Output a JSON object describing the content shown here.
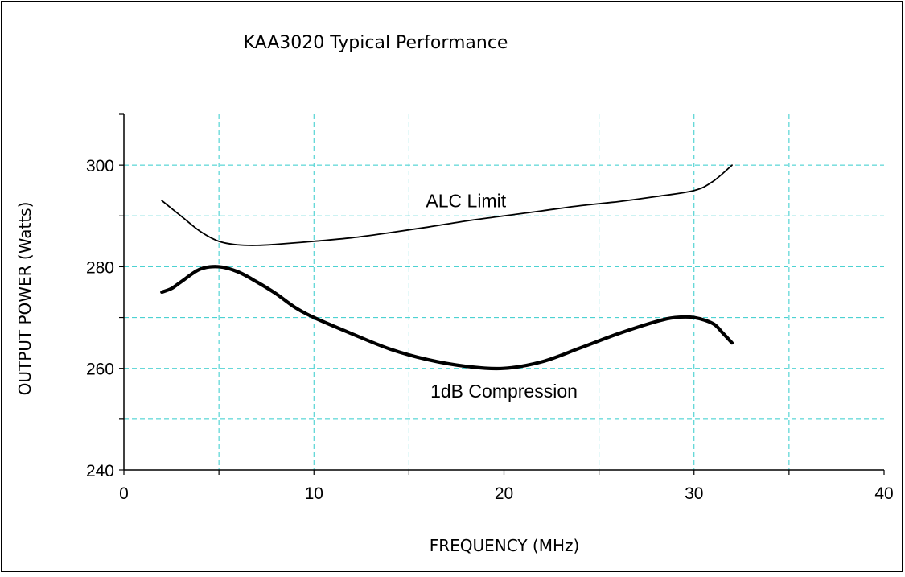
{
  "chart_data": {
    "type": "line",
    "title": "KAA3020 Typical Performance",
    "xlabel": "FREQUENCY (MHz)",
    "ylabel": "OUTPUT POWER (Watts)",
    "xlim": [
      0,
      40
    ],
    "ylim": [
      240,
      310
    ],
    "x_ticks": [
      0,
      10,
      20,
      30,
      40
    ],
    "y_ticks": [
      240,
      260,
      280,
      300
    ],
    "grid": true,
    "legend": "none",
    "colors": {
      "grid": "#33CCCC",
      "line": "#000000",
      "axis": "#000000"
    },
    "series": [
      {
        "name": "ALC Limit",
        "x": [
          2,
          3,
          4,
          5,
          6,
          7,
          8,
          10,
          12,
          14,
          16,
          18,
          20,
          22,
          24,
          26,
          28,
          30,
          31,
          32
        ],
        "y": [
          293,
          290,
          287,
          285,
          284.3,
          284.2,
          284.4,
          285,
          285.7,
          286.7,
          287.8,
          289,
          290,
          291,
          292,
          292.8,
          293.8,
          295,
          296.8,
          300
        ],
        "annotation": "ALC Limit"
      },
      {
        "name": "1dB Compression",
        "x": [
          2,
          2.5,
          3,
          4,
          5,
          6,
          7,
          8,
          9,
          10,
          12,
          14,
          16,
          18,
          20,
          22,
          24,
          26,
          28,
          29,
          30,
          31,
          31.5,
          32
        ],
        "y": [
          275,
          275.7,
          277,
          279.5,
          280,
          279,
          277,
          274.7,
          272,
          270,
          266.8,
          263.8,
          261.7,
          260.4,
          260,
          261.3,
          264,
          266.8,
          269.2,
          270,
          270,
          268.8,
          267,
          265
        ],
        "annotation": "1dB Compression"
      }
    ]
  }
}
